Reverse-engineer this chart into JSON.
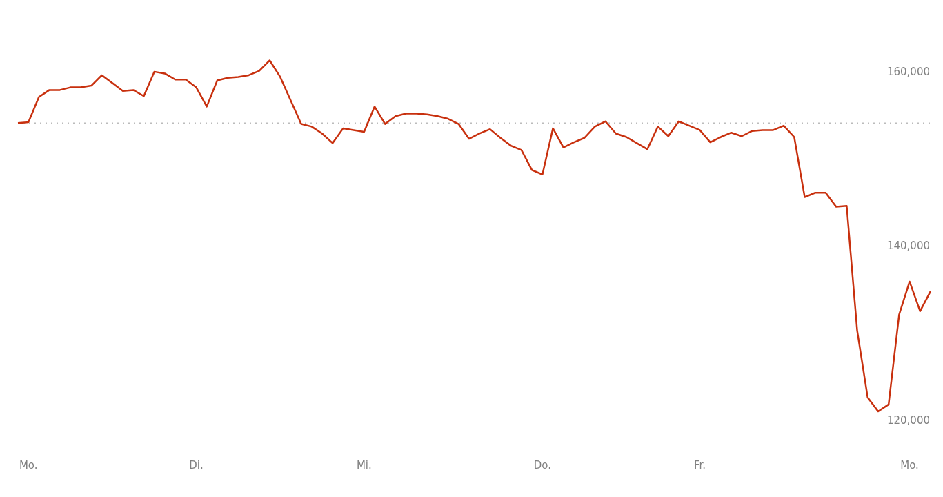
{
  "chart_data": {
    "type": "line",
    "categories": [
      null,
      "Mo.",
      null,
      null,
      null,
      null,
      null,
      null,
      null,
      null,
      null,
      null,
      null,
      null,
      null,
      null,
      null,
      "Di.",
      null,
      null,
      null,
      null,
      null,
      null,
      null,
      null,
      null,
      null,
      null,
      null,
      null,
      null,
      null,
      "Mi.",
      null,
      null,
      null,
      null,
      null,
      null,
      null,
      null,
      null,
      null,
      null,
      null,
      null,
      null,
      null,
      null,
      "Do.",
      null,
      null,
      null,
      null,
      null,
      null,
      null,
      null,
      null,
      null,
      null,
      null,
      null,
      null,
      "Fr.",
      null,
      null,
      null,
      null,
      null,
      null,
      null,
      null,
      null,
      null,
      null,
      null,
      null,
      null,
      null,
      null,
      null,
      null,
      null,
      "Mo.",
      null,
      null
    ],
    "series": [
      {
        "color": "#c8300e",
        "values": [
          154100,
          154200,
          157100,
          157900,
          157900,
          158200,
          158200,
          158400,
          159600,
          158700,
          157800,
          157900,
          157200,
          160000,
          159800,
          159100,
          159100,
          158200,
          156000,
          159000,
          159300,
          159400,
          159600,
          160100,
          161300,
          159400,
          156700,
          154000,
          153700,
          152900,
          151800,
          153500,
          153300,
          153100,
          156000,
          154000,
          154900,
          155200,
          155200,
          155100,
          154900,
          154600,
          154000,
          152300,
          152900,
          153400,
          152400,
          151500,
          151000,
          148700,
          148200,
          153500,
          151300,
          151900,
          152400,
          153700,
          154300,
          152900,
          152500,
          151800,
          151100,
          153700,
          152600,
          154300,
          153800,
          153300,
          151900,
          152500,
          153000,
          152600,
          153200,
          153300,
          153300,
          153800,
          152500,
          145600,
          146100,
          146100,
          144500,
          144600,
          130300,
          122600,
          121000,
          121800,
          132100,
          135900,
          132500,
          134800
        ]
      }
    ],
    "ylim": [
      111800,
      167600
    ],
    "yticks": [
      {
        "value": 120000,
        "label": "120,000"
      },
      {
        "value": 140000,
        "label": "140,000"
      },
      {
        "value": 160000,
        "label": "160,000"
      }
    ],
    "ref_lines": [
      {
        "axis": "y",
        "value": 154100,
        "color": "#bbbbbb",
        "line_style": "dotted"
      }
    ],
    "grid": false,
    "marker": "none",
    "line_style": "solid"
  }
}
